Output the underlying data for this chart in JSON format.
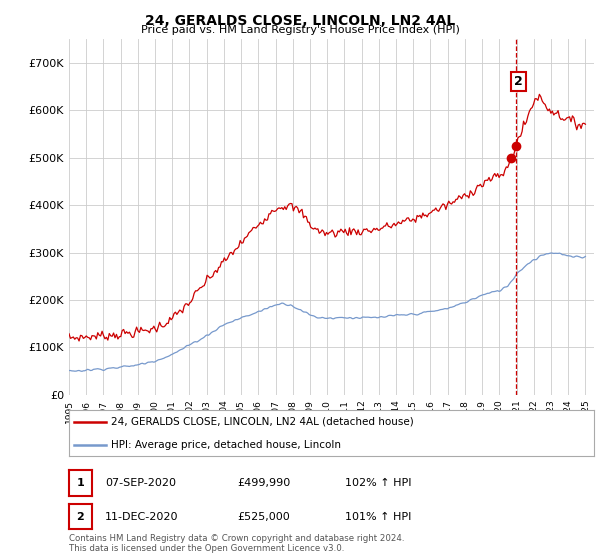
{
  "title": "24, GERALDS CLOSE, LINCOLN, LN2 4AL",
  "subtitle": "Price paid vs. HM Land Registry's House Price Index (HPI)",
  "ylim": [
    0,
    750000
  ],
  "yticks": [
    0,
    100000,
    200000,
    300000,
    400000,
    500000,
    600000,
    700000
  ],
  "ytick_labels": [
    "£0",
    "£100K",
    "£200K",
    "£300K",
    "£400K",
    "£500K",
    "£600K",
    "£700K"
  ],
  "red_color": "#cc0000",
  "blue_color": "#7799cc",
  "background_color": "#ffffff",
  "grid_color": "#cccccc",
  "legend_label_red": "24, GERALDS CLOSE, LINCOLN, LN2 4AL (detached house)",
  "legend_label_blue": "HPI: Average price, detached house, Lincoln",
  "table_rows": [
    {
      "num": "1",
      "date": "07-SEP-2020",
      "price": "£499,990",
      "hpi": "102% ↑ HPI"
    },
    {
      "num": "2",
      "date": "11-DEC-2020",
      "price": "£525,000",
      "hpi": "101% ↑ HPI"
    }
  ],
  "footer": "Contains HM Land Registry data © Crown copyright and database right 2024.\nThis data is licensed under the Open Government Licence v3.0.",
  "xmin": 1995,
  "xmax": 2025.5,
  "xtick_years": [
    1995,
    1996,
    1997,
    1998,
    1999,
    2000,
    2001,
    2002,
    2003,
    2004,
    2005,
    2006,
    2007,
    2008,
    2009,
    2010,
    2011,
    2012,
    2013,
    2014,
    2015,
    2016,
    2017,
    2018,
    2019,
    2020,
    2021,
    2022,
    2023,
    2024,
    2025
  ],
  "marker1_year": 2020.69,
  "marker1_val": 499990,
  "marker2_year": 2020.95,
  "marker2_val": 525000,
  "annot_year": 2021.1,
  "annot_val": 660000
}
